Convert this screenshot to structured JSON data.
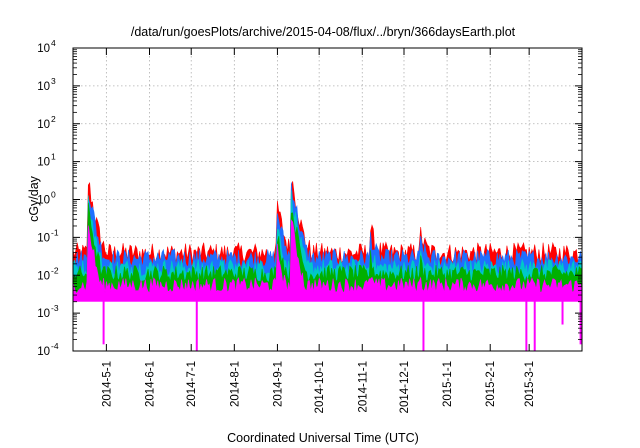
{
  "chart_data": {
    "type": "area",
    "title": "/data/run/goesPlots/archive/2015-04-08/flux/../bryn/366daysEarth.plot",
    "xlabel": "Coordinated Universal Time (UTC)",
    "ylabel": "cGy/day",
    "x_range": [
      "2014-04-07",
      "2015-04-08"
    ],
    "ylim": [
      0.0001,
      10000
    ],
    "y_scale": "log",
    "y_ticks": [
      {
        "value": 0.0001,
        "base": "10",
        "exp": "-4"
      },
      {
        "value": 0.001,
        "base": "10",
        "exp": "-3"
      },
      {
        "value": 0.01,
        "base": "10",
        "exp": "-2"
      },
      {
        "value": 0.1,
        "base": "10",
        "exp": "-1"
      },
      {
        "value": 1,
        "base": "10",
        "exp": "0"
      },
      {
        "value": 10,
        "base": "10",
        "exp": "1"
      },
      {
        "value": 100,
        "base": "10",
        "exp": "2"
      },
      {
        "value": 1000,
        "base": "10",
        "exp": "3"
      },
      {
        "value": 10000,
        "base": "10",
        "exp": "4"
      }
    ],
    "x_ticks": [
      {
        "date": "2014-05-01",
        "label": "2014-5-1"
      },
      {
        "date": "2014-06-01",
        "label": "2014-6-1"
      },
      {
        "date": "2014-07-01",
        "label": "2014-7-1"
      },
      {
        "date": "2014-08-01",
        "label": "2014-8-1"
      },
      {
        "date": "2014-09-01",
        "label": "2014-9-1"
      },
      {
        "date": "2014-10-01",
        "label": "2014-10-1"
      },
      {
        "date": "2014-11-01",
        "label": "2014-11-1"
      },
      {
        "date": "2014-12-01",
        "label": "2014-12-1"
      },
      {
        "date": "2015-01-01",
        "label": "2015-1-1"
      },
      {
        "date": "2015-02-01",
        "label": "2015-2-1"
      },
      {
        "date": "2015-03-01",
        "label": "2015-3-1"
      }
    ],
    "grid": true,
    "series": [
      {
        "color": "#ff0000",
        "base_level": 0.03,
        "spread": 0.55,
        "scale": 1.0
      },
      {
        "color": "#1f6fff",
        "base_level": 0.022,
        "spread": 0.5,
        "scale": 0.9
      },
      {
        "color": "#00c8c8",
        "base_level": 0.013,
        "spread": 0.45,
        "scale": 0.7
      },
      {
        "color": "#00b000",
        "base_level": 0.009,
        "spread": 0.45,
        "scale": 0.6
      },
      {
        "color": "#ff00ff",
        "base_level": 0.0045,
        "spread": 0.4,
        "scale": 0.45
      }
    ],
    "events": [
      {
        "date": "2014-04-18",
        "peak": 2.3
      },
      {
        "date": "2014-09-01",
        "peak": 0.55
      },
      {
        "date": "2014-09-11",
        "peak": 3.2
      },
      {
        "date": "2014-11-07",
        "peak": 0.13
      },
      {
        "date": "2014-12-13",
        "peak": 0.1
      }
    ],
    "dropouts": [
      {
        "date": "2014-04-29",
        "min": 0.00015
      },
      {
        "date": "2014-07-05",
        "min": 0.0001
      },
      {
        "date": "2014-12-15",
        "min": 0.0001
      },
      {
        "date": "2015-02-27",
        "min": 0.0001
      },
      {
        "date": "2015-03-05",
        "min": 0.0001
      },
      {
        "date": "2015-03-25",
        "min": 0.0005
      },
      {
        "date": "2015-04-07",
        "min": 0.00015
      }
    ],
    "axis_color": "#000000",
    "grid_color": "#b0b0b0"
  }
}
